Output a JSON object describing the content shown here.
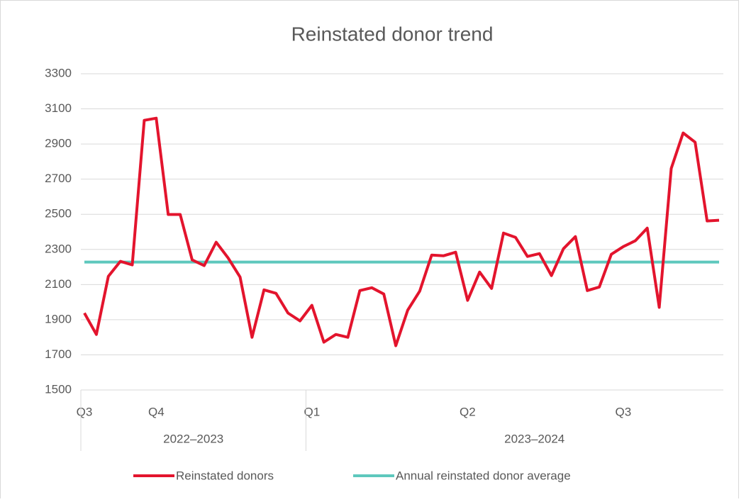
{
  "chart_data": {
    "type": "line",
    "title": "Reinstated donor trend",
    "categories": [
      "Q3",
      null,
      null,
      null,
      null,
      null,
      "Q4",
      null,
      null,
      null,
      null,
      null,
      null,
      null,
      null,
      null,
      null,
      null,
      null,
      "Q1",
      null,
      null,
      null,
      null,
      null,
      null,
      null,
      null,
      null,
      null,
      null,
      null,
      "Q2",
      null,
      null,
      null,
      null,
      null,
      null,
      null,
      null,
      null,
      null,
      null,
      null,
      "Q3",
      null,
      null,
      null,
      null,
      null,
      null,
      null,
      null
    ],
    "groups": [
      {
        "label": "2022–2023",
        "start": 0,
        "end": 18
      },
      {
        "label": "2023–2024",
        "start": 19,
        "end": 53
      }
    ],
    "series": [
      {
        "name": "Reinstated donors",
        "color": "#e3142d",
        "values": [
          1938,
          1816,
          2147,
          2232,
          2212,
          3035,
          3047,
          2499,
          2499,
          2240,
          2208,
          2341,
          2252,
          2143,
          1800,
          2070,
          2050,
          1938,
          1893,
          1982,
          1772,
          1816,
          1800,
          2066,
          2082,
          2046,
          1752,
          1954,
          2062,
          2268,
          2264,
          2284,
          2010,
          2171,
          2078,
          2393,
          2369,
          2260,
          2276,
          2151,
          2304,
          2373,
          2066,
          2086,
          2272,
          2316,
          2349,
          2421,
          1970,
          2761,
          2963,
          2910,
          2462,
          2466
        ]
      },
      {
        "name": "Annual reinstated donor average",
        "color": "#5ec8bd",
        "values": [
          2228,
          2228,
          2228,
          2228,
          2228,
          2228,
          2228,
          2228,
          2228,
          2228,
          2228,
          2228,
          2228,
          2228,
          2228,
          2228,
          2228,
          2228,
          2228,
          2228,
          2228,
          2228,
          2228,
          2228,
          2228,
          2228,
          2228,
          2228,
          2228,
          2228,
          2228,
          2228,
          2228,
          2228,
          2228,
          2228,
          2228,
          2228,
          2228,
          2228,
          2228,
          2228,
          2228,
          2228,
          2228,
          2228,
          2228,
          2228,
          2228,
          2228,
          2228,
          2228,
          2228,
          2228
        ]
      }
    ],
    "ylim": [
      1500,
      3300
    ],
    "yticks": [
      1500,
      1700,
      1900,
      2100,
      2300,
      2500,
      2700,
      2900,
      3100,
      3300
    ],
    "grid": true,
    "legend": "bottom"
  }
}
